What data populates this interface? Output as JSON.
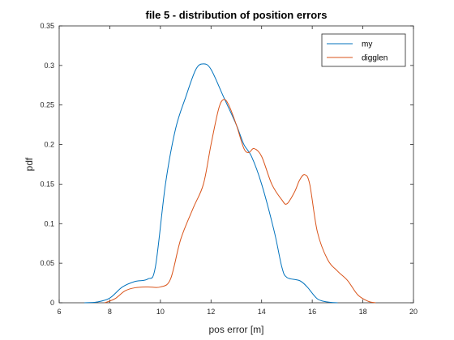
{
  "chart_data": {
    "type": "line",
    "title": "file 5 - distribution of position errors",
    "xlabel": "pos error [m]",
    "ylabel": "pdf",
    "xlim": [
      6,
      20
    ],
    "ylim": [
      0,
      0.35
    ],
    "xticks": [
      6,
      8,
      10,
      12,
      14,
      16,
      18,
      20
    ],
    "xtick_labels": [
      "6",
      "8",
      "10",
      "12",
      "14",
      "16",
      "18",
      "20"
    ],
    "yticks": [
      0,
      0.05,
      0.1,
      0.15,
      0.2,
      0.25,
      0.3,
      0.35
    ],
    "ytick_labels": [
      "0",
      "0.05",
      "0.1",
      "0.15",
      "0.2",
      "0.25",
      "0.3",
      "0.35"
    ],
    "grid": false,
    "legend_position": "top-right",
    "series": [
      {
        "name": "my",
        "color": "#0072BD",
        "points": [
          [
            7.0,
            0
          ],
          [
            7.5,
            0.001
          ],
          [
            8.0,
            0.006
          ],
          [
            8.5,
            0.02
          ],
          [
            9.0,
            0.027
          ],
          [
            9.5,
            0.03
          ],
          [
            9.8,
            0.045
          ],
          [
            10.2,
            0.15
          ],
          [
            10.6,
            0.22
          ],
          [
            11.0,
            0.26
          ],
          [
            11.4,
            0.295
          ],
          [
            11.7,
            0.302
          ],
          [
            12.0,
            0.295
          ],
          [
            12.5,
            0.26
          ],
          [
            13.0,
            0.225
          ],
          [
            13.3,
            0.2
          ],
          [
            13.6,
            0.185
          ],
          [
            14.0,
            0.15
          ],
          [
            14.5,
            0.09
          ],
          [
            14.8,
            0.045
          ],
          [
            15.0,
            0.032
          ],
          [
            15.5,
            0.028
          ],
          [
            15.8,
            0.02
          ],
          [
            16.2,
            0.005
          ],
          [
            16.6,
            0.001
          ],
          [
            17.0,
            0
          ]
        ]
      },
      {
        "name": "digglen",
        "color": "#D95319",
        "points": [
          [
            7.8,
            0
          ],
          [
            8.2,
            0.005
          ],
          [
            8.6,
            0.015
          ],
          [
            9.0,
            0.019
          ],
          [
            9.5,
            0.02
          ],
          [
            10.0,
            0.02
          ],
          [
            10.4,
            0.03
          ],
          [
            10.8,
            0.08
          ],
          [
            11.3,
            0.12
          ],
          [
            11.7,
            0.15
          ],
          [
            12.0,
            0.2
          ],
          [
            12.3,
            0.245
          ],
          [
            12.5,
            0.257
          ],
          [
            12.7,
            0.25
          ],
          [
            13.0,
            0.225
          ],
          [
            13.3,
            0.195
          ],
          [
            13.5,
            0.19
          ],
          [
            13.7,
            0.195
          ],
          [
            14.0,
            0.185
          ],
          [
            14.4,
            0.15
          ],
          [
            14.8,
            0.13
          ],
          [
            15.0,
            0.125
          ],
          [
            15.3,
            0.14
          ],
          [
            15.5,
            0.155
          ],
          [
            15.7,
            0.162
          ],
          [
            15.9,
            0.15
          ],
          [
            16.2,
            0.09
          ],
          [
            16.6,
            0.055
          ],
          [
            17.0,
            0.04
          ],
          [
            17.4,
            0.028
          ],
          [
            17.8,
            0.01
          ],
          [
            18.2,
            0.002
          ],
          [
            18.5,
            0
          ]
        ]
      }
    ]
  }
}
